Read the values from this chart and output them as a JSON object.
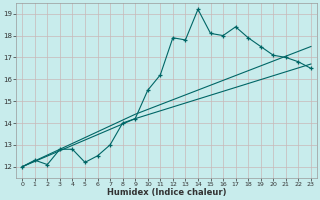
{
  "xlabel": "Humidex (Indice chaleur)",
  "bg_color": "#c8ecec",
  "grid_color": "#aad4cc",
  "line_color": "#006666",
  "xlim": [
    -0.5,
    23.5
  ],
  "ylim": [
    11.5,
    19.5
  ],
  "curve1_x": [
    0,
    1,
    2,
    3,
    4,
    5,
    6,
    7,
    8,
    9,
    10,
    11,
    12,
    13,
    14,
    15,
    16,
    17,
    18,
    19,
    20,
    21,
    22,
    23
  ],
  "curve1_y": [
    12.0,
    12.3,
    12.1,
    12.8,
    12.8,
    12.2,
    12.5,
    13.0,
    14.0,
    14.2,
    15.5,
    16.2,
    17.9,
    17.8,
    19.2,
    18.1,
    18.0,
    18.4,
    17.9,
    17.5,
    17.1,
    17.0,
    16.8,
    16.5
  ],
  "curve2_x": [
    0,
    9,
    23
  ],
  "curve2_y": [
    12.0,
    14.2,
    16.7
  ],
  "curve3_x": [
    0,
    9,
    23
  ],
  "curve3_y": [
    12.0,
    14.4,
    17.5
  ]
}
